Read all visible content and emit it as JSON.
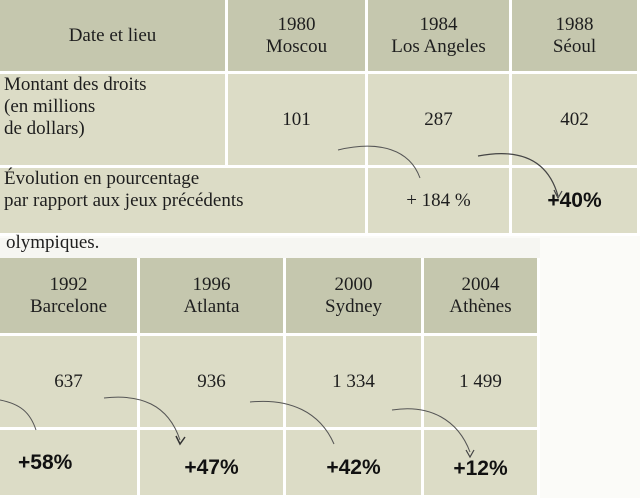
{
  "table1": {
    "header_label": "Date et lieu",
    "years": [
      {
        "year": "1980",
        "city": "Moscou"
      },
      {
        "year": "1984",
        "city": "Los Angeles"
      },
      {
        "year": "1988",
        "city": "Séoul"
      }
    ],
    "rights_label_lines": [
      "Montant des droits",
      "(en millions",
      "de dollars)"
    ],
    "rights_values": [
      "101",
      "287",
      "402"
    ],
    "evolution_label_lines": [
      "Évolution en pourcentage",
      "par rapport aux jeux précédents"
    ],
    "evolution_values": [
      "",
      "+ 184 %",
      "+40%"
    ]
  },
  "caption_fragment": "olympiques.",
  "table2": {
    "years": [
      {
        "year": "1992",
        "city": "Barcelone"
      },
      {
        "year": "1996",
        "city": "Atlanta"
      },
      {
        "year": "2000",
        "city": "Sydney"
      },
      {
        "year": "2004",
        "city": "Athènes"
      }
    ],
    "rights_values": [
      "637",
      "936",
      "1 334",
      "1 499"
    ],
    "evolution_values": [
      "+58%",
      "+47%",
      "+42%",
      "+12%"
    ]
  }
}
